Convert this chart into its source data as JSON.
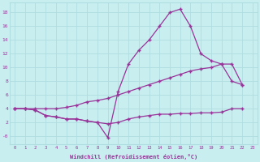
{
  "xlabel": "Windchill (Refroidissement éolien,°C)",
  "background_color": "#c8eef0",
  "grid_color": "#b0dde0",
  "line_color": "#993399",
  "xlim": [
    -0.5,
    23.5
  ],
  "ylim": [
    -1.2,
    19.5
  ],
  "xticks": [
    0,
    1,
    2,
    3,
    4,
    5,
    6,
    7,
    8,
    9,
    10,
    11,
    12,
    13,
    14,
    15,
    16,
    17,
    18,
    19,
    20,
    21,
    22,
    23
  ],
  "yticks": [
    0,
    2,
    4,
    6,
    8,
    10,
    12,
    14,
    16,
    18
  ],
  "ytick_labels": [
    "-0",
    "2",
    "4",
    "6",
    "8",
    "10",
    "12",
    "14",
    "16",
    "18"
  ],
  "line1_x": [
    0,
    1,
    2,
    3,
    4,
    5,
    6,
    7,
    8,
    9,
    10,
    11,
    12,
    13,
    14,
    15,
    16,
    17,
    18,
    19,
    20,
    21,
    22
  ],
  "line1_y": [
    4,
    4,
    3.8,
    3.0,
    2.8,
    2.5,
    2.5,
    2.2,
    2.0,
    1.8,
    2.0,
    2.5,
    2.8,
    3.0,
    3.2,
    3.2,
    3.3,
    3.3,
    3.4,
    3.4,
    3.5,
    4.0,
    4.0
  ],
  "line2_x": [
    0,
    1,
    2,
    3,
    4,
    5,
    6,
    7,
    8,
    9,
    10,
    11,
    12,
    13,
    14,
    15,
    16,
    17,
    18,
    19,
    20,
    21,
    22
  ],
  "line2_y": [
    4,
    4,
    4,
    4,
    4,
    4.2,
    4.5,
    5.0,
    5.2,
    5.5,
    6.0,
    6.5,
    7.0,
    7.5,
    8.0,
    8.5,
    9.0,
    9.5,
    9.8,
    10.0,
    10.5,
    10.5,
    7.5
  ],
  "line3_x": [
    0,
    1,
    2,
    3,
    4,
    5,
    6,
    7,
    8,
    9,
    10,
    11,
    12,
    13,
    14,
    15,
    16,
    17,
    18,
    19,
    20,
    21,
    22
  ],
  "line3_y": [
    4,
    4,
    3.8,
    3.0,
    2.8,
    2.5,
    2.5,
    2.2,
    2.0,
    -0.2,
    6.5,
    10.5,
    12.5,
    14.0,
    16.0,
    18.0,
    18.5,
    16.0,
    12.0,
    11.0,
    10.5,
    8.0,
    7.5
  ]
}
